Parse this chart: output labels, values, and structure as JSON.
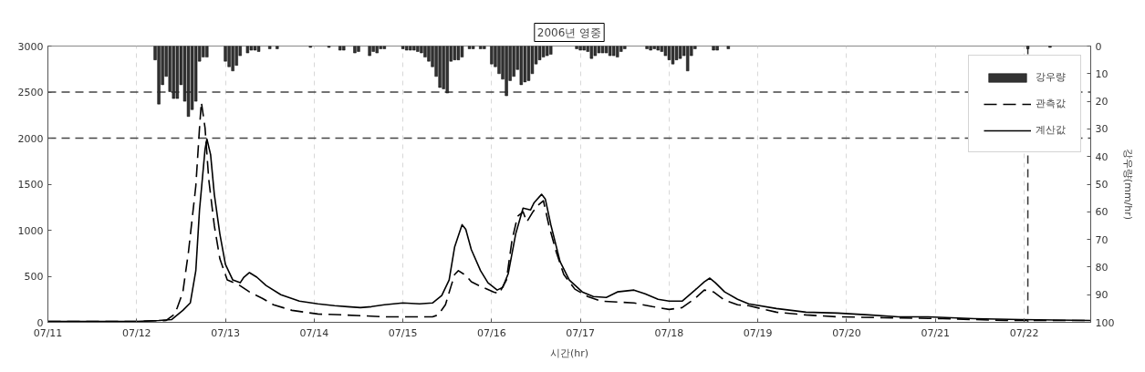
{
  "chart_data": {
    "type": "line",
    "title": "2006년 영중",
    "xlabel": "시간(hr)",
    "y2label": "강우량(mm/hr)",
    "xlim": [
      "2006-07-11",
      "2006-07-22T18:00"
    ],
    "xticks": [
      {
        "value": "2006-07-11",
        "label": "07/11"
      },
      {
        "value": "2006-07-12",
        "label": "07/12"
      },
      {
        "value": "2006-07-13",
        "label": "07/13"
      },
      {
        "value": "2006-07-14",
        "label": "07/14"
      },
      {
        "value": "2006-07-15",
        "label": "07/15"
      },
      {
        "value": "2006-07-16",
        "label": "07/16"
      },
      {
        "value": "2006-07-17",
        "label": "07/17"
      },
      {
        "value": "2006-07-18",
        "label": "07/18"
      },
      {
        "value": "2006-07-19",
        "label": "07/19"
      },
      {
        "value": "2006-07-20",
        "label": "07/20"
      },
      {
        "value": "2006-07-21",
        "label": "07/21"
      },
      {
        "value": "2006-07-22",
        "label": "07/22"
      }
    ],
    "ylim": [
      0,
      3000
    ],
    "yticks": [
      0,
      500,
      1000,
      1500,
      2000,
      2500,
      3000
    ],
    "y2lim": [
      100,
      0
    ],
    "y2ticks": [
      0,
      10,
      20,
      30,
      40,
      50,
      60,
      70,
      80,
      90,
      100
    ],
    "grid": "x",
    "legend": "top right",
    "ref_lines": [
      {
        "axis": "y",
        "value": 2000,
        "color": "#444444",
        "line_style": "dashed"
      },
      {
        "axis": "y",
        "value": 2500,
        "color": "#444444",
        "line_style": "dashed"
      },
      {
        "axis": "x",
        "value": "2006-07-22T01:00",
        "color": "#333333",
        "line_style": "dashed"
      }
    ],
    "series": [
      {
        "name": "강우량",
        "type": "bar",
        "axis": "y2",
        "color": "#333333",
        "x": [
          "2006-07-12T05:00",
          "2006-07-12T06:00",
          "2006-07-12T07:00",
          "2006-07-12T08:00",
          "2006-07-12T09:00",
          "2006-07-12T10:00",
          "2006-07-12T11:00",
          "2006-07-12T12:00",
          "2006-07-12T13:00",
          "2006-07-12T14:00",
          "2006-07-12T15:00",
          "2006-07-12T16:00",
          "2006-07-12T17:00",
          "2006-07-12T18:00",
          "2006-07-12T19:00",
          "2006-07-13T00:00",
          "2006-07-13T01:00",
          "2006-07-13T02:00",
          "2006-07-13T03:00",
          "2006-07-13T04:00",
          "2006-07-13T06:00",
          "2006-07-13T07:00",
          "2006-07-13T08:00",
          "2006-07-13T09:00",
          "2006-07-13T12:00",
          "2006-07-13T14:00",
          "2006-07-13T23:00",
          "2006-07-14T04:00",
          "2006-07-14T07:00",
          "2006-07-14T08:00",
          "2006-07-14T11:00",
          "2006-07-14T12:00",
          "2006-07-14T15:00",
          "2006-07-14T16:00",
          "2006-07-14T17:00",
          "2006-07-14T18:00",
          "2006-07-14T19:00",
          "2006-07-15T00:00",
          "2006-07-15T01:00",
          "2006-07-15T02:00",
          "2006-07-15T03:00",
          "2006-07-15T04:00",
          "2006-07-15T05:00",
          "2006-07-15T06:00",
          "2006-07-15T07:00",
          "2006-07-15T08:00",
          "2006-07-15T09:00",
          "2006-07-15T10:00",
          "2006-07-15T11:00",
          "2006-07-15T12:00",
          "2006-07-15T13:00",
          "2006-07-15T14:00",
          "2006-07-15T15:00",
          "2006-07-15T16:00",
          "2006-07-15T18:00",
          "2006-07-15T19:00",
          "2006-07-15T21:00",
          "2006-07-15T22:00",
          "2006-07-16T00:00",
          "2006-07-16T01:00",
          "2006-07-16T02:00",
          "2006-07-16T03:00",
          "2006-07-16T04:00",
          "2006-07-16T05:00",
          "2006-07-16T06:00",
          "2006-07-16T07:00",
          "2006-07-16T08:00",
          "2006-07-16T09:00",
          "2006-07-16T10:00",
          "2006-07-16T11:00",
          "2006-07-16T12:00",
          "2006-07-16T13:00",
          "2006-07-16T14:00",
          "2006-07-16T15:00",
          "2006-07-16T16:00",
          "2006-07-16T23:00",
          "2006-07-17T00:00",
          "2006-07-17T01:00",
          "2006-07-17T02:00",
          "2006-07-17T03:00",
          "2006-07-17T04:00",
          "2006-07-17T05:00",
          "2006-07-17T06:00",
          "2006-07-17T07:00",
          "2006-07-17T08:00",
          "2006-07-17T09:00",
          "2006-07-17T10:00",
          "2006-07-17T11:00",
          "2006-07-17T12:00",
          "2006-07-17T18:00",
          "2006-07-17T19:00",
          "2006-07-17T20:00",
          "2006-07-17T21:00",
          "2006-07-17T22:00",
          "2006-07-17T23:00",
          "2006-07-18T00:00",
          "2006-07-18T01:00",
          "2006-07-18T02:00",
          "2006-07-18T03:00",
          "2006-07-18T04:00",
          "2006-07-18T05:00",
          "2006-07-18T06:00",
          "2006-07-18T07:00",
          "2006-07-18T12:00",
          "2006-07-18T13:00",
          "2006-07-18T16:00",
          "2006-07-22T01:00",
          "2006-07-22T07:00"
        ],
        "values": [
          5,
          21,
          14,
          11,
          16.5,
          19,
          19,
          14,
          20,
          25.5,
          23,
          20,
          5.5,
          4,
          4,
          5.5,
          7.5,
          9,
          7,
          3.5,
          2.5,
          1.5,
          1.5,
          2,
          1,
          1,
          0.5,
          0.5,
          1.5,
          1.5,
          2.5,
          2,
          3.5,
          2,
          2.5,
          1,
          1,
          1,
          1.5,
          1.5,
          1.5,
          2,
          2.5,
          4,
          5.5,
          7.5,
          11,
          15,
          15.5,
          17,
          5.5,
          5,
          5,
          4,
          1,
          1,
          1,
          1,
          6.5,
          7.5,
          10,
          12,
          18,
          12.5,
          11,
          8.5,
          14,
          13,
          12.5,
          10,
          6.5,
          5,
          4,
          3.5,
          3,
          1,
          1.5,
          1.5,
          2,
          4.5,
          3.5,
          2.5,
          2.5,
          2.5,
          3.5,
          3.5,
          4,
          2,
          1,
          1,
          1.5,
          1,
          1.5,
          2,
          3.5,
          5,
          6.5,
          5,
          4.5,
          3.5,
          9,
          3.5,
          1,
          1.5,
          1.5,
          1,
          1,
          0.5
        ]
      },
      {
        "name": "관측값",
        "color": "#000000",
        "line_style": "dashed",
        "x": [
          "2006-07-11T00:00",
          "2006-07-12T00:00",
          "2006-07-12T08:00",
          "2006-07-12T10:00",
          "2006-07-12T11:00",
          "2006-07-12T12:30",
          "2006-07-12T14:00",
          "2006-07-12T16:00",
          "2006-07-12T17:00",
          "2006-07-12T17:30",
          "2006-07-12T18:30",
          "2006-07-12T19:30",
          "2006-07-12T21:00",
          "2006-07-12T22:30",
          "2006-07-13T00:30",
          "2006-07-13T03:30",
          "2006-07-13T06:30",
          "2006-07-13T10:00",
          "2006-07-13T13:00",
          "2006-07-13T18:00",
          "2006-07-14T01:00",
          "2006-07-14T08:00",
          "2006-07-14T19:00",
          "2006-07-15T04:00",
          "2006-07-15T08:00",
          "2006-07-15T09:30",
          "2006-07-15T11:30",
          "2006-07-15T13:00",
          "2006-07-15T14:00",
          "2006-07-15T15:00",
          "2006-07-15T17:00",
          "2006-07-15T18:30",
          "2006-07-15T21:00",
          "2006-07-16T00:30",
          "2006-07-16T02:00",
          "2006-07-16T04:00",
          "2006-07-16T05:30",
          "2006-07-16T07:00",
          "2006-07-16T08:30",
          "2006-07-16T09:30",
          "2006-07-16T11:00",
          "2006-07-16T12:30",
          "2006-07-16T14:00",
          "2006-07-16T15:30",
          "2006-07-16T17:30",
          "2006-07-16T19:30",
          "2006-07-16T22:30",
          "2006-07-17T02:00",
          "2006-07-17T05:30",
          "2006-07-17T10:00",
          "2006-07-17T14:30",
          "2006-07-17T19:30",
          "2006-07-18T00:00",
          "2006-07-18T03:30",
          "2006-07-18T07:00",
          "2006-07-18T09:30",
          "2006-07-18T12:00",
          "2006-07-18T15:00",
          "2006-07-18T18:30",
          "2006-07-18T21:30",
          "2006-07-19T05:00",
          "2006-07-19T13:00",
          "2006-07-19T21:30",
          "2006-07-20T10:00",
          "2006-07-21T02:00",
          "2006-07-21T19:00",
          "2006-07-22T18:00"
        ],
        "values": [
          10,
          10,
          20,
          80,
          160,
          330,
          760,
          1480,
          2110,
          2390,
          2110,
          1550,
          1050,
          690,
          460,
          410,
          330,
          260,
          190,
          130,
          90,
          80,
          60,
          60,
          60,
          80,
          190,
          390,
          520,
          560,
          510,
          440,
          390,
          330,
          310,
          460,
          890,
          1150,
          1200,
          1090,
          1190,
          1270,
          1320,
          1050,
          760,
          520,
          360,
          280,
          230,
          220,
          210,
          170,
          140,
          160,
          260,
          350,
          330,
          240,
          190,
          180,
          110,
          80,
          60,
          50,
          40,
          20,
          20
        ]
      },
      {
        "name": "계산값",
        "color": "#000000",
        "line_style": "solid",
        "x": [
          "2006-07-11T00:00",
          "2006-07-12T00:00",
          "2006-07-12T06:00",
          "2006-07-12T09:30",
          "2006-07-12T12:30",
          "2006-07-12T14:30",
          "2006-07-12T16:00",
          "2006-07-12T17:00",
          "2006-07-12T18:30",
          "2006-07-12T19:00",
          "2006-07-12T20:00",
          "2006-07-12T21:00",
          "2006-07-12T22:30",
          "2006-07-13T00:00",
          "2006-07-13T02:00",
          "2006-07-13T04:00",
          "2006-07-13T05:00",
          "2006-07-13T06:30",
          "2006-07-13T08:30",
          "2006-07-13T11:00",
          "2006-07-13T15:00",
          "2006-07-13T20:00",
          "2006-07-14T01:00",
          "2006-07-14T05:30",
          "2006-07-14T09:00",
          "2006-07-14T12:30",
          "2006-07-14T15:30",
          "2006-07-14T19:00",
          "2006-07-15T00:00",
          "2006-07-15T04:30",
          "2006-07-15T08:00",
          "2006-07-15T10:30",
          "2006-07-15T12:30",
          "2006-07-15T14:00",
          "2006-07-15T16:00",
          "2006-07-15T17:00",
          "2006-07-15T18:30",
          "2006-07-15T21:00",
          "2006-07-15T23:00",
          "2006-07-16T01:30",
          "2006-07-16T03:00",
          "2006-07-16T04:30",
          "2006-07-16T06:30",
          "2006-07-16T08:30",
          "2006-07-16T10:30",
          "2006-07-16T11:30",
          "2006-07-16T13:30",
          "2006-07-16T14:30",
          "2006-07-16T16:00",
          "2006-07-16T18:30",
          "2006-07-16T21:00",
          "2006-07-17T00:30",
          "2006-07-17T03:30",
          "2006-07-17T07:00",
          "2006-07-17T10:00",
          "2006-07-17T14:30",
          "2006-07-17T17:30",
          "2006-07-17T21:00",
          "2006-07-18T00:00",
          "2006-07-18T03:30",
          "2006-07-18T07:00",
          "2006-07-18T09:30",
          "2006-07-18T11:00",
          "2006-07-18T12:30",
          "2006-07-18T15:00",
          "2006-07-18T18:30",
          "2006-07-18T21:30",
          "2006-07-19T05:00",
          "2006-07-19T13:00",
          "2006-07-19T21:30",
          "2006-07-20T06:00",
          "2006-07-20T14:00",
          "2006-07-20T22:00",
          "2006-07-21T10:30",
          "2006-07-21T23:00",
          "2006-07-22T18:00"
        ],
        "values": [
          10,
          10,
          20,
          30,
          130,
          210,
          560,
          1220,
          1880,
          1990,
          1820,
          1390,
          960,
          630,
          460,
          430,
          490,
          540,
          490,
          400,
          300,
          230,
          200,
          180,
          170,
          160,
          170,
          190,
          210,
          200,
          210,
          290,
          460,
          820,
          1060,
          1010,
          790,
          560,
          430,
          350,
          380,
          530,
          960,
          1240,
          1220,
          1300,
          1390,
          1340,
          1060,
          660,
          460,
          330,
          280,
          270,
          330,
          350,
          310,
          250,
          230,
          230,
          350,
          440,
          480,
          430,
          330,
          250,
          200,
          150,
          110,
          100,
          80,
          60,
          60,
          40,
          30,
          20
        ]
      }
    ]
  }
}
